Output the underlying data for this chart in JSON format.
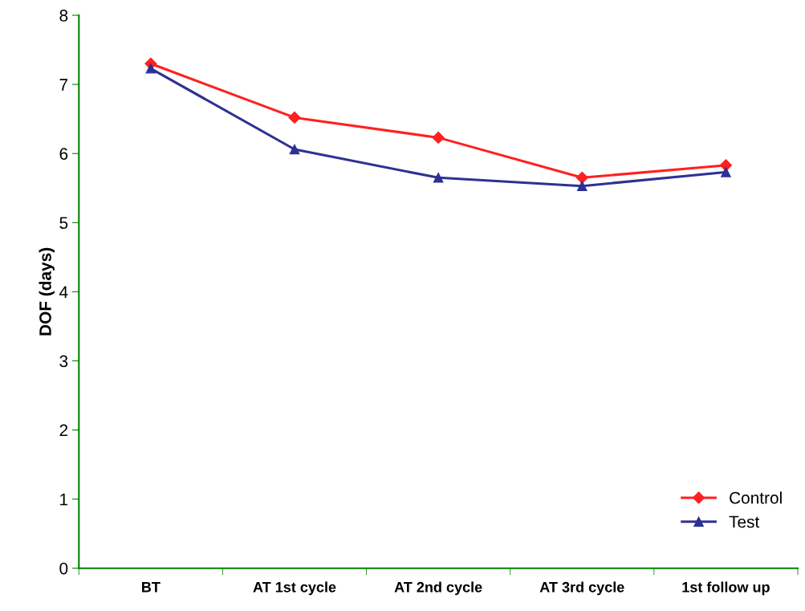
{
  "chart_data": {
    "type": "line",
    "ylabel": "DOF (days)",
    "categories": [
      "BT",
      "AT 1st cycle",
      "AT 2nd cycle",
      "AT 3rd cycle",
      "1st follow up"
    ],
    "series": [
      {
        "name": "Control",
        "color": "#ff2020",
        "marker": "diamond",
        "values": [
          7.3,
          6.52,
          6.23,
          5.65,
          5.83
        ]
      },
      {
        "name": "Test",
        "color": "#2e3192",
        "marker": "triangle",
        "values": [
          7.23,
          6.06,
          5.65,
          5.53,
          5.73
        ]
      }
    ],
    "ylim": [
      0,
      8
    ],
    "yticks": [
      0,
      1,
      2,
      3,
      4,
      5,
      6,
      7,
      8
    ],
    "grid": false,
    "legend": "bottom right",
    "line_style": "solid"
  }
}
